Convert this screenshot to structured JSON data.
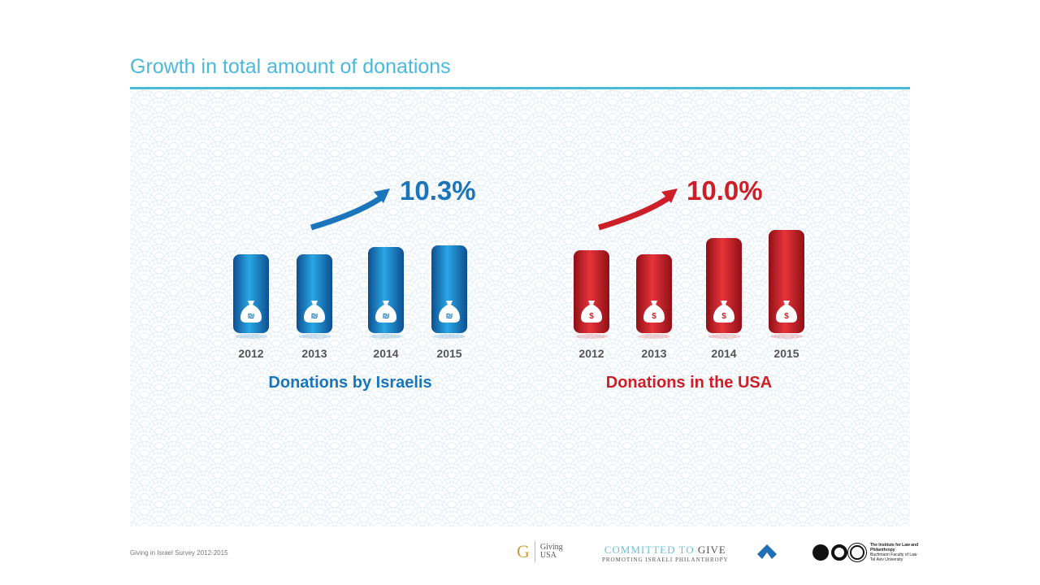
{
  "title": "Growth in total amount of donations",
  "chart_data": [
    {
      "type": "bar",
      "title": "Donations by Israelis",
      "categories": [
        "2012",
        "2013",
        "2014",
        "2015"
      ],
      "values": [
        97,
        97,
        106,
        108
      ],
      "growth_label": "10.3%",
      "color": "#1a75bb",
      "currency_icon": "shekel-money-bag-icon",
      "currency_symbol": "₪"
    },
    {
      "type": "bar",
      "title": "Donations in the USA",
      "categories": [
        "2012",
        "2013",
        "2014",
        "2015"
      ],
      "values": [
        102,
        97,
        117,
        127
      ],
      "growth_label": "10.0%",
      "color": "#cc1f27",
      "currency_icon": "dollar-money-bag-icon",
      "currency_symbol": "$"
    }
  ],
  "footer": {
    "survey": "Giving in Israel Survey 2012-2015",
    "logos": {
      "giving_usa": "Giving USA",
      "committed": "COMMITTED TO ",
      "give": "GIVE",
      "promoting": "PROMOTING ISRAELI PHILANTHROPY",
      "institute": "The Institute for Law and Philanthropy",
      "buchmann": "Buchmann Faculty of Law",
      "tau": "Tel Aviv University"
    }
  }
}
